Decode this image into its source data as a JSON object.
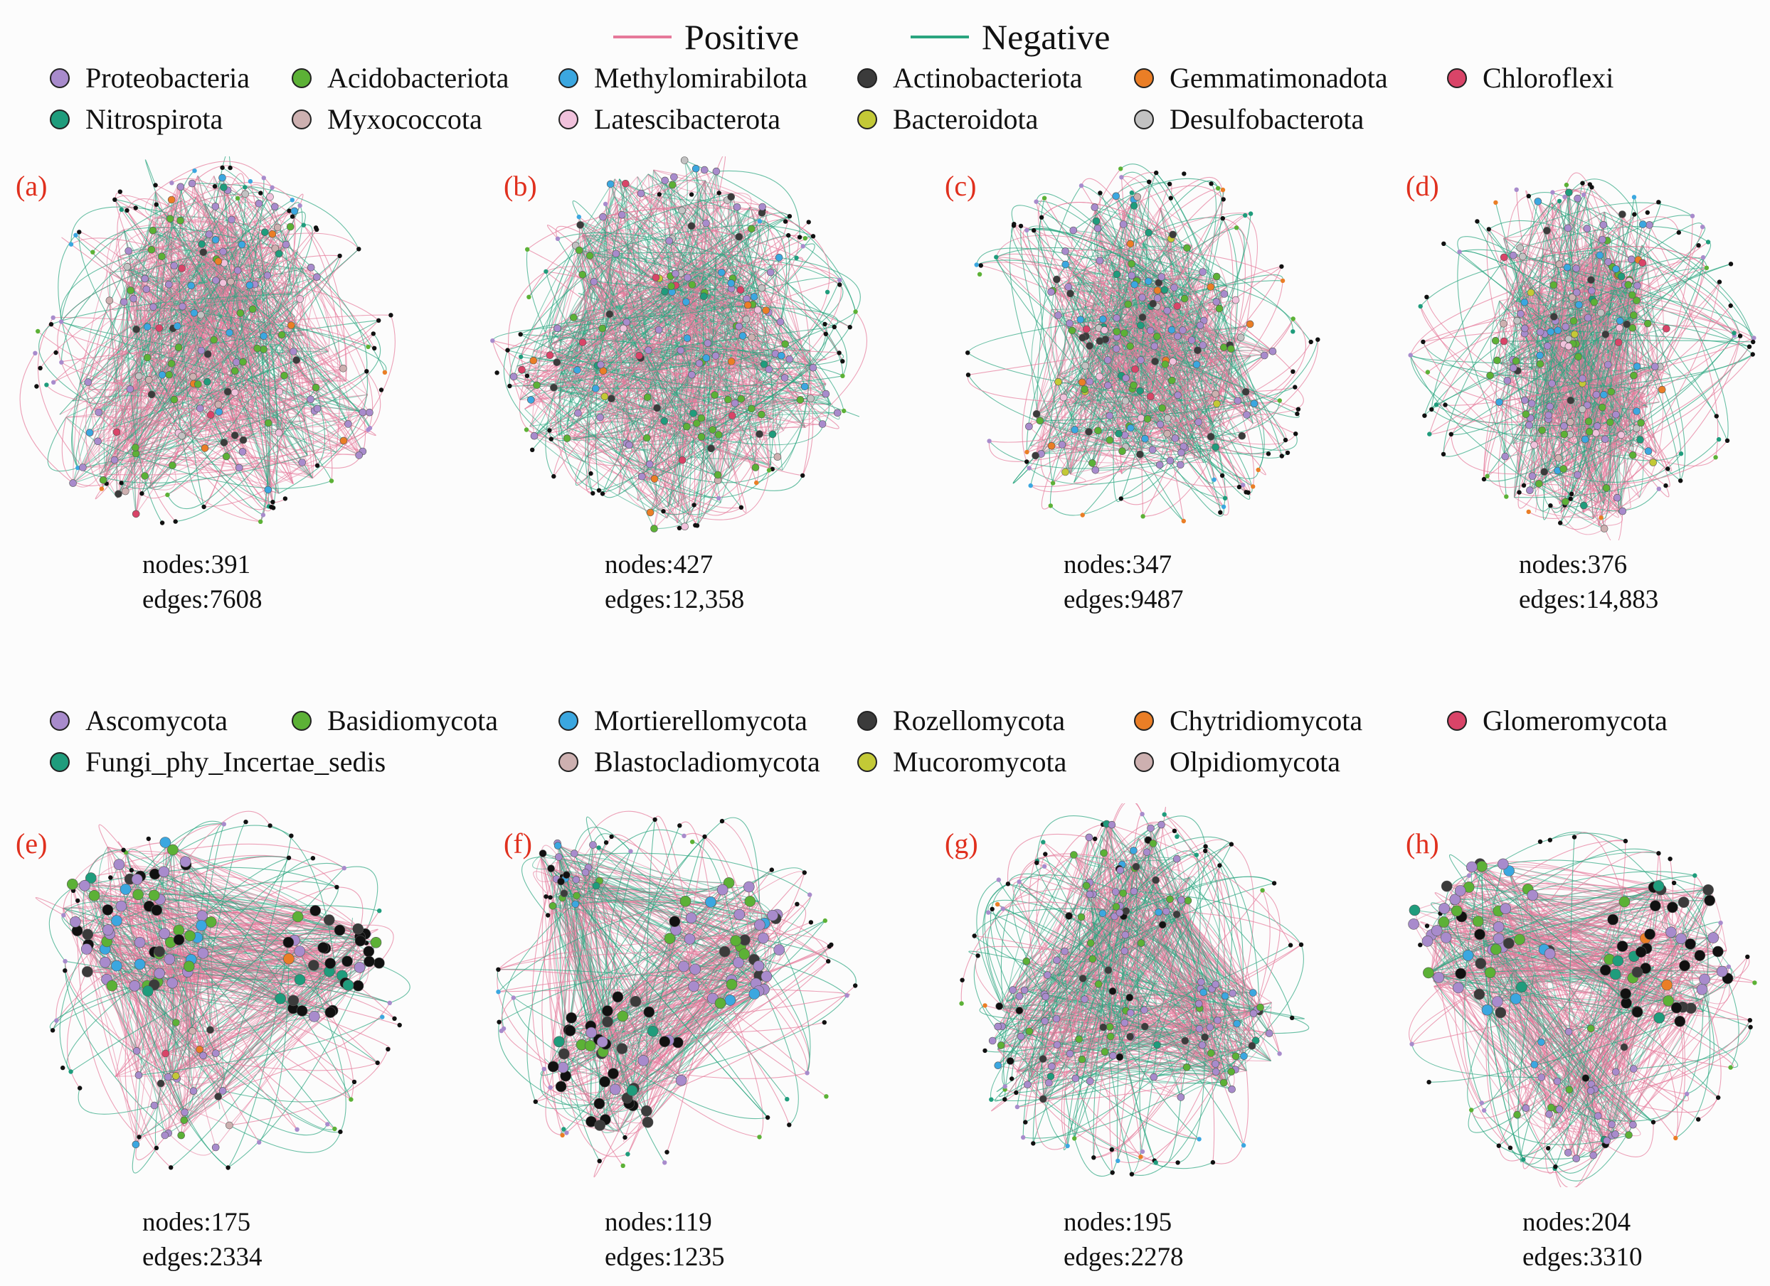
{
  "edge_legend": [
    {
      "label": "Positive",
      "color": "#e6799a"
    },
    {
      "label": "Negative",
      "color": "#2aa57f"
    }
  ],
  "bacteria_legend": [
    {
      "label": "Proteobacteria",
      "color": "#a88bcc"
    },
    {
      "label": "Acidobacteriota",
      "color": "#5cb136"
    },
    {
      "label": "Methylomirabilota",
      "color": "#3ba7e0"
    },
    {
      "label": "Actinobacteriota",
      "color": "#3b3b3b"
    },
    {
      "label": "Gemmatimonadota",
      "color": "#ea7e26"
    },
    {
      "label": "Chloroflexi",
      "color": "#d94468"
    },
    {
      "label": "Nitrospirota",
      "color": "#1f9c7c"
    },
    {
      "label": "Myxococcota",
      "color": "#cdb0b0"
    },
    {
      "label": "Latescibacterota",
      "color": "#f1c2dc"
    },
    {
      "label": "Bacteroidota",
      "color": "#c3c936"
    },
    {
      "label": "Desulfobacterota",
      "color": "#c2c2c2"
    }
  ],
  "fungi_legend": [
    {
      "label": "Ascomycota",
      "color": "#a88bcc"
    },
    {
      "label": "Basidiomycota",
      "color": "#5cb136"
    },
    {
      "label": "Mortierellomycota",
      "color": "#3ba7e0"
    },
    {
      "label": "Rozellomycota",
      "color": "#3b3b3b"
    },
    {
      "label": "Chytridiomycota",
      "color": "#ea7e26"
    },
    {
      "label": "Glomeromycota",
      "color": "#d94468"
    },
    {
      "label": "Fungi_phy_Incertae_sedis",
      "color": "#1f9c7c"
    },
    {
      "label": "Blastocladiomycota",
      "color": "#cdb0b0"
    },
    {
      "label": "Mucoromycota",
      "color": "#c3c936"
    },
    {
      "label": "Olpidiomycota",
      "color": "#cdb0b0"
    }
  ],
  "panels": [
    {
      "letter": "(a)",
      "nodes": "nodes:391",
      "edges": "edges:7608"
    },
    {
      "letter": "(b)",
      "nodes": "nodes:427",
      "edges": "edges:12,358"
    },
    {
      "letter": "(c)",
      "nodes": "nodes:347",
      "edges": "edges:9487"
    },
    {
      "letter": "(d)",
      "nodes": "nodes:376",
      "edges": "edges:14,883"
    },
    {
      "letter": "(e)",
      "nodes": "nodes:175",
      "edges": "edges:2334"
    },
    {
      "letter": "(f)",
      "nodes": "nodes:119",
      "edges": "edges:1235"
    },
    {
      "letter": "(g)",
      "nodes": "nodes:195",
      "edges": "edges:2278"
    },
    {
      "letter": "(h)",
      "nodes": "nodes:204",
      "edges": "edges:3310"
    }
  ]
}
